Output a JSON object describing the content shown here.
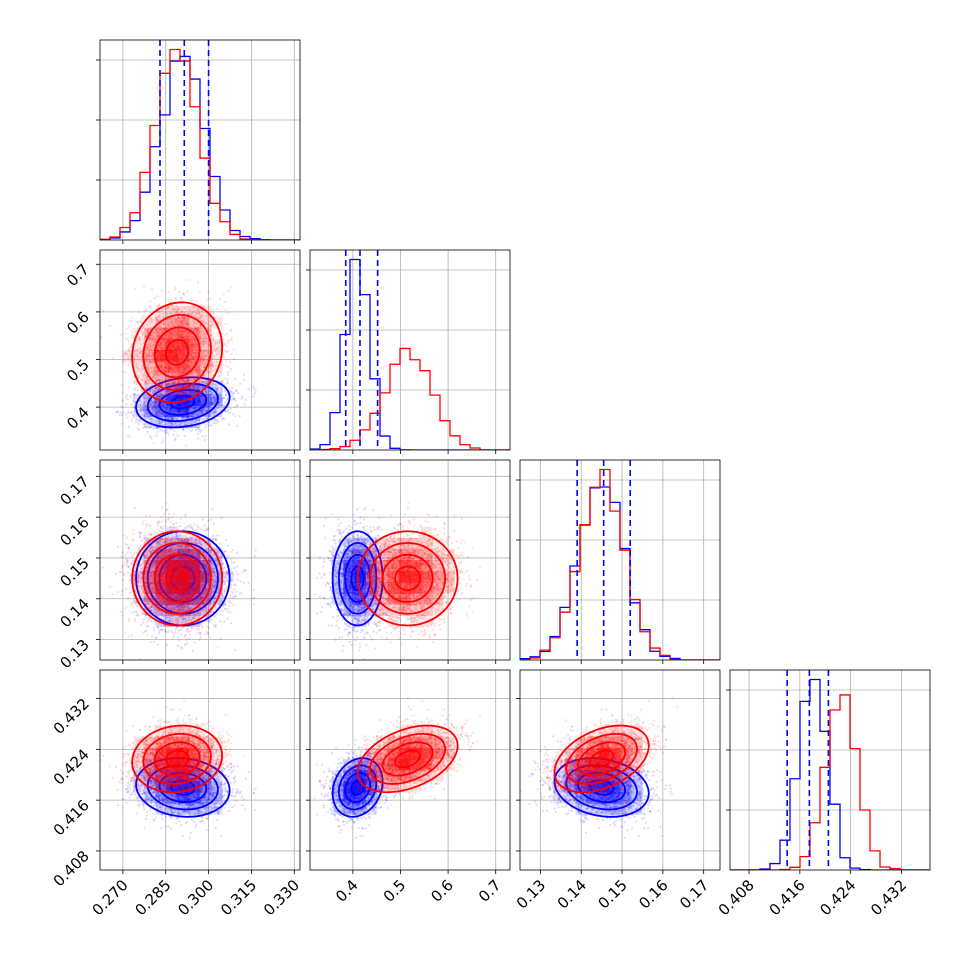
{
  "chart_data": {
    "type": "corner",
    "grid": true,
    "colors": {
      "blue": "#0000ff",
      "red": "#ff0000"
    },
    "params": [
      {
        "range": [
          0.262,
          0.332
        ],
        "ticks": [
          0.27,
          0.285,
          0.3,
          0.315,
          0.33
        ],
        "tick_labels": [
          "0.270",
          "0.285",
          "0.300",
          "0.315",
          "0.330"
        ]
      },
      {
        "range": [
          0.31,
          0.73
        ],
        "ticks": [
          0.4,
          0.5,
          0.6,
          0.7
        ],
        "tick_labels": [
          "0.4",
          "0.5",
          "0.6",
          "0.7"
        ]
      },
      {
        "range": [
          0.125,
          0.174
        ],
        "ticks": [
          0.13,
          0.14,
          0.15,
          0.16,
          0.17
        ],
        "tick_labels": [
          "0.13",
          "0.14",
          "0.15",
          "0.16",
          "0.17"
        ]
      },
      {
        "range": [
          0.405,
          0.4365
        ],
        "ticks": [
          0.408,
          0.416,
          0.424,
          0.432
        ],
        "tick_labels": [
          "0.408",
          "0.416",
          "0.424",
          "0.432"
        ]
      }
    ],
    "series": [
      {
        "color": "blue",
        "mean": [
          0.291,
          0.41,
          0.145,
          0.418
        ],
        "std": [
          0.0078,
          0.025,
          0.0055,
          0.0022
        ],
        "corr": [
          [
            1,
            0.2,
            0,
            -0.1
          ],
          [
            0.2,
            1,
            0,
            0.2
          ],
          [
            0,
            0,
            1,
            -0.2
          ],
          [
            -0.1,
            0.2,
            -0.2,
            1
          ]
        ],
        "quantiles": [
          [
            0.283,
            0.2915,
            0.3
          ],
          [
            0.385,
            0.415,
            0.452
          ],
          [
            0.139,
            0.1455,
            0.152
          ],
          [
            0.414,
            0.4175,
            0.4205
          ]
        ]
      },
      {
        "color": "red",
        "mean": [
          0.289,
          0.515,
          0.145,
          0.4225
        ],
        "std": [
          0.0075,
          0.05,
          0.0055,
          0.0025
        ],
        "corr": [
          [
            1,
            0.1,
            0,
            0.1
          ],
          [
            0.1,
            1,
            0,
            0.4
          ],
          [
            0,
            0,
            1,
            0.4
          ],
          [
            0.1,
            0.4,
            0.4,
            1
          ]
        ]
      }
    ]
  }
}
